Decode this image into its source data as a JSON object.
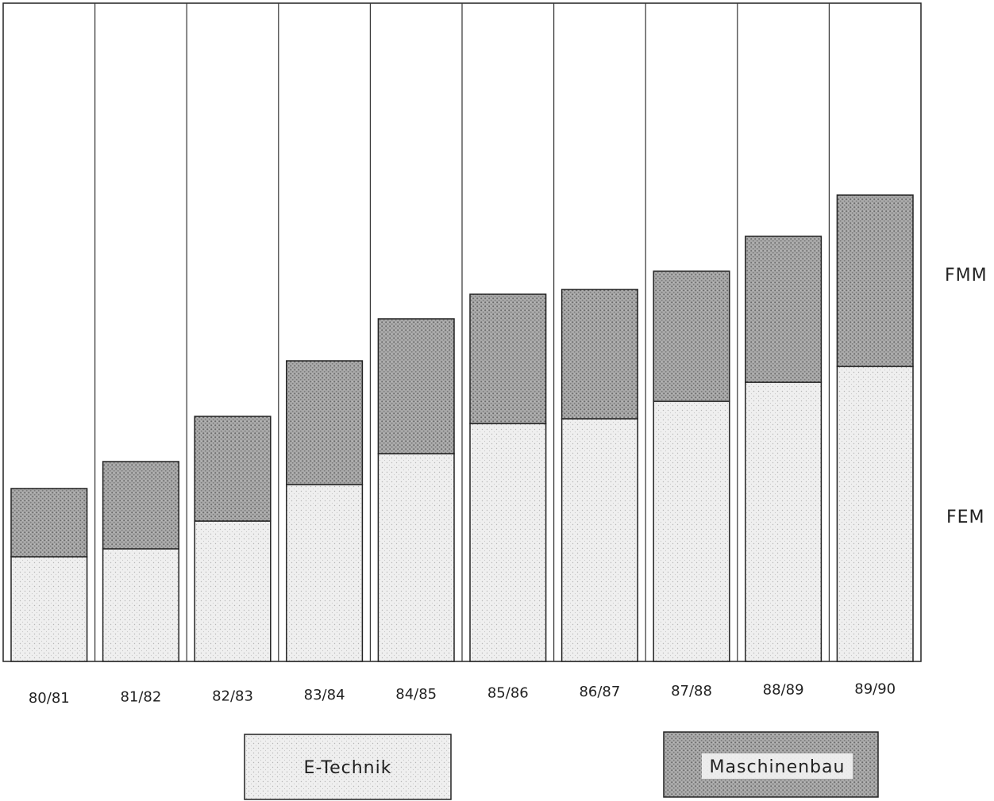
{
  "chart_data": {
    "type": "bar",
    "stacked": true,
    "categories": [
      "80/81",
      "81/82",
      "82/83",
      "83/84",
      "84/85",
      "85/86",
      "86/87",
      "87/88",
      "88/89",
      "89/90"
    ],
    "series": [
      {
        "name": "E-Technik",
        "values": [
          132,
          142,
          177,
          223,
          262,
          300,
          306,
          328,
          352,
          372
        ],
        "color": "#ececec"
      },
      {
        "name": "Maschinenbau",
        "values": [
          86,
          110,
          132,
          156,
          170,
          163,
          163,
          164,
          184,
          216
        ],
        "color": "#9b9b9b"
      }
    ],
    "ylim": [
      0,
      830
    ],
    "grid": "vertical",
    "legend": "bottom",
    "side_labels": {
      "top": "FMM",
      "bottom": "FEM"
    }
  }
}
